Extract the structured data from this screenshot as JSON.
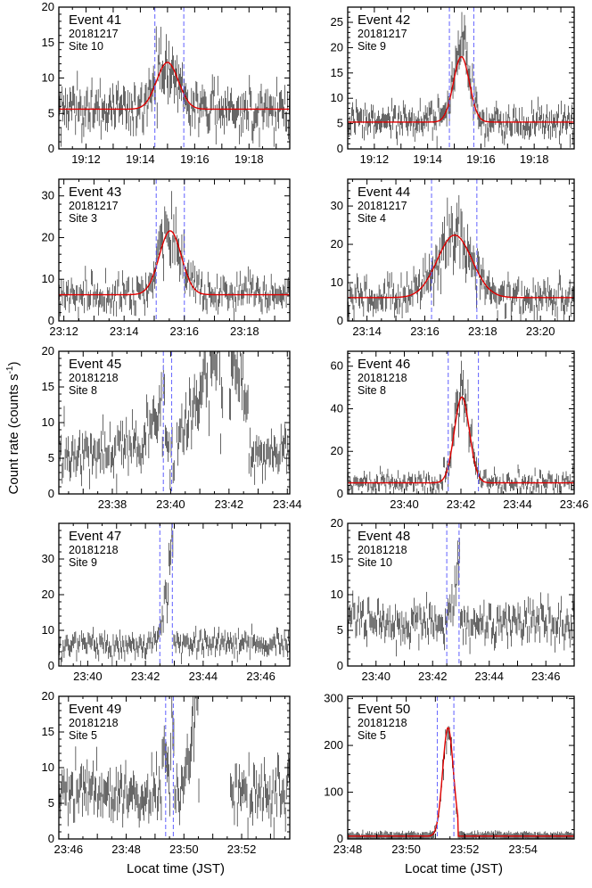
{
  "figure": {
    "ylabel": "Count rate (counts s",
    "ylabel_sup": "-1",
    "ylabel_close": ")",
    "xlabel_left": "Locat time (JST)",
    "xlabel_right": "Locat time (JST)"
  },
  "colors": {
    "data": "#000000",
    "fit": "#e00000",
    "marker": "#6f6fff"
  },
  "chart_data": [
    {
      "type": "scatter",
      "title": "Event 41",
      "date": "20181217",
      "site": "Site 10",
      "xlim": [
        "19:11",
        "19:19:30"
      ],
      "ylim": [
        0,
        20
      ],
      "yticks": [
        0,
        5,
        10,
        15,
        20
      ],
      "xticks": [
        "19:12",
        "19:14",
        "19:16",
        "19:18"
      ],
      "markers": [
        "19:14:32",
        "19:15:36"
      ],
      "data_pattern": "bump",
      "noise": 1.6,
      "fit": {
        "baseline": 5.6,
        "amplitude": 6.6,
        "center": "19:15:00",
        "sigma_s": 24
      }
    },
    {
      "type": "scatter",
      "title": "Event 42",
      "date": "20181217",
      "site": "Site 9",
      "xlim": [
        "19:11",
        "19:19:30"
      ],
      "ylim": [
        0,
        28
      ],
      "yticks": [
        0,
        5,
        10,
        15,
        20,
        25
      ],
      "xticks": [
        "19:12",
        "19:14",
        "19:16",
        "19:18"
      ],
      "markers": [
        "19:14:49",
        "19:15:44"
      ],
      "data_pattern": "bump",
      "noise": 1.6,
      "fit": {
        "baseline": 5.3,
        "amplitude": 12.9,
        "center": "19:15:16",
        "sigma_s": 18
      }
    },
    {
      "type": "scatter",
      "title": "Event 43",
      "date": "20181217",
      "site": "Site 3",
      "xlim": [
        "23:11:50",
        "23:19:30"
      ],
      "ylim": [
        0,
        34
      ],
      "yticks": [
        0,
        10,
        20,
        30
      ],
      "xticks": [
        "23:12",
        "23:14",
        "23:16",
        "23:18"
      ],
      "markers": [
        "23:15:04",
        "23:16:00"
      ],
      "data_pattern": "bump",
      "noise": 2.0,
      "fit": {
        "baseline": 6.3,
        "amplitude": 15.3,
        "center": "23:15:32",
        "sigma_s": 22
      }
    },
    {
      "type": "scatter",
      "title": "Event 44",
      "date": "20181217",
      "site": "Site 4",
      "xlim": [
        "23:13:20",
        "23:21:10"
      ],
      "ylim": [
        0,
        37
      ],
      "yticks": [
        0,
        10,
        20,
        30
      ],
      "xticks": [
        "23:14",
        "23:16",
        "23:18",
        "23:20"
      ],
      "markers": [
        "23:16:14",
        "23:17:48"
      ],
      "data_pattern": "bump",
      "noise": 2.2,
      "fit": {
        "baseline": 6.1,
        "amplitude": 16.3,
        "center": "23:17:02",
        "sigma_s": 36
      }
    },
    {
      "type": "scatter",
      "title": "Event 45",
      "date": "20181218",
      "site": "Site 8",
      "xlim": [
        "23:36:10",
        "23:44:05"
      ],
      "ylim": [
        0,
        20
      ],
      "yticks": [
        0,
        5,
        10,
        15,
        20
      ],
      "xticks": [
        "23:38",
        "23:40",
        "23:42",
        "23:44"
      ],
      "markers": [
        "23:39:45",
        "23:40:02"
      ],
      "data_pattern": "e45",
      "noise": 1.6
    },
    {
      "type": "scatter",
      "title": "Event 46",
      "date": "20181218",
      "site": "Site 8",
      "xlim": [
        "23:38",
        "23:46"
      ],
      "ylim": [
        0,
        67
      ],
      "yticks": [
        0,
        20,
        40,
        60
      ],
      "xticks": [
        "23:40",
        "23:42",
        "23:44",
        "23:46"
      ],
      "markers": [
        "23:41:33",
        "23:42:37"
      ],
      "data_pattern": "bump",
      "noise": 2.4,
      "fit": {
        "baseline": 5.2,
        "amplitude": 40.3,
        "center": "23:42:02",
        "sigma_s": 16
      }
    },
    {
      "type": "scatter",
      "title": "Event 47",
      "date": "20181218",
      "site": "Site 9",
      "xlim": [
        "23:39",
        "23:47"
      ],
      "ylim": [
        0,
        40
      ],
      "yticks": [
        0,
        10,
        20,
        30
      ],
      "xticks": [
        "23:40",
        "23:42",
        "23:44",
        "23:46"
      ],
      "markers": [
        "23:42:30",
        "23:42:56"
      ],
      "data_pattern": "spike",
      "noise": 1.8,
      "spike": {
        "baseline": 6.0,
        "start": "23:42:24",
        "end": "23:42:58",
        "peak": 35
      }
    },
    {
      "type": "scatter",
      "title": "Event 48",
      "date": "20181218",
      "site": "Site 10",
      "xlim": [
        "23:39",
        "23:47"
      ],
      "ylim": [
        0,
        20
      ],
      "yticks": [
        0,
        5,
        10,
        15,
        20
      ],
      "xticks": [
        "23:40",
        "23:42",
        "23:44",
        "23:46"
      ],
      "markers": [
        "23:42:30",
        "23:42:56"
      ],
      "data_pattern": "spike",
      "noise": 1.3,
      "spike": {
        "baseline": 6.0,
        "start": "23:42:30",
        "end": "23:42:58",
        "peak": 14.5
      }
    },
    {
      "type": "scatter",
      "title": "Event 49",
      "date": "20181218",
      "site": "Site 5",
      "xlim": [
        "23:45:40",
        "23:53:40"
      ],
      "ylim": [
        0,
        20
      ],
      "yticks": [
        0,
        5,
        10,
        15,
        20
      ],
      "xticks": [
        "23:46",
        "23:48",
        "23:50",
        "23:52"
      ],
      "markers": [
        "23:49:22",
        "23:49:38"
      ],
      "data_pattern": "e49",
      "noise": 1.8
    },
    {
      "type": "scatter",
      "title": "Event 50",
      "date": "20181218",
      "site": "Site 5",
      "xlim": [
        "23:48",
        "23:55:45"
      ],
      "ylim": [
        0,
        305
      ],
      "yticks": [
        0,
        100,
        200,
        300
      ],
      "xticks": [
        "23:48",
        "23:50",
        "23:52",
        "23:54"
      ],
      "markers": [
        "23:51:04",
        "23:51:38"
      ],
      "data_pattern": "e50",
      "noise": 2.5,
      "fit": {
        "baseline": 6.0,
        "amplitude": 232,
        "center": "23:51:26",
        "sigma_s": 11,
        "cutoff": "23:51:46"
      }
    }
  ]
}
